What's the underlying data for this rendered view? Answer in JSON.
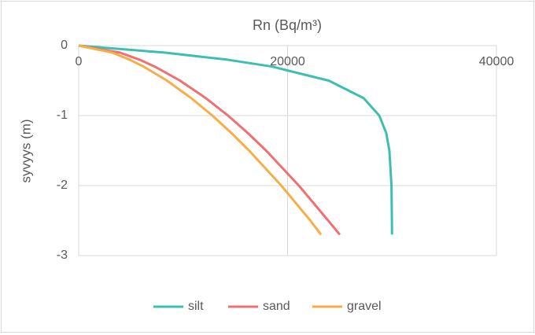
{
  "chart_data": {
    "type": "line",
    "title": "Rn (Bq/m³)",
    "ylabel": "syvyys (m)",
    "series": [
      {
        "name": "silt",
        "color": "#3dbfb0",
        "x": [
          0,
          8220,
          14180,
          18520,
          23940,
          27280,
          28780,
          29450,
          29750,
          29950,
          29990,
          30000
        ],
        "values": [
          0,
          -0.1,
          -0.2,
          -0.3,
          -0.5,
          -0.75,
          -1,
          -1.25,
          -1.5,
          -2,
          -2.5,
          -2.7
        ]
      },
      {
        "name": "sand",
        "color": "#ee7070",
        "x": [
          0,
          3940,
          5810,
          7290,
          9700,
          12170,
          14300,
          16200,
          17950,
          21080,
          23890,
          25000
        ],
        "values": [
          0,
          -0.1,
          -0.2,
          -0.3,
          -0.5,
          -0.75,
          -1,
          -1.25,
          -1.5,
          -2,
          -2.5,
          -2.7
        ]
      },
      {
        "name": "gravel",
        "color": "#f7ae4a",
        "x": [
          0,
          3210,
          4870,
          6220,
          8450,
          10770,
          12800,
          14630,
          16320,
          19400,
          22180,
          23200
        ],
        "values": [
          0,
          -0.1,
          -0.2,
          -0.3,
          -0.5,
          -0.75,
          -1,
          -1.25,
          -1.5,
          -2,
          -2.5,
          -2.7
        ]
      }
    ],
    "xlim": [
      0,
      40000
    ],
    "xticks": [
      0,
      20000,
      40000
    ],
    "ylim": [
      -3,
      0
    ],
    "yticks": [
      0,
      -1,
      -2,
      -3
    ],
    "grid": true,
    "legend": "bottom"
  }
}
